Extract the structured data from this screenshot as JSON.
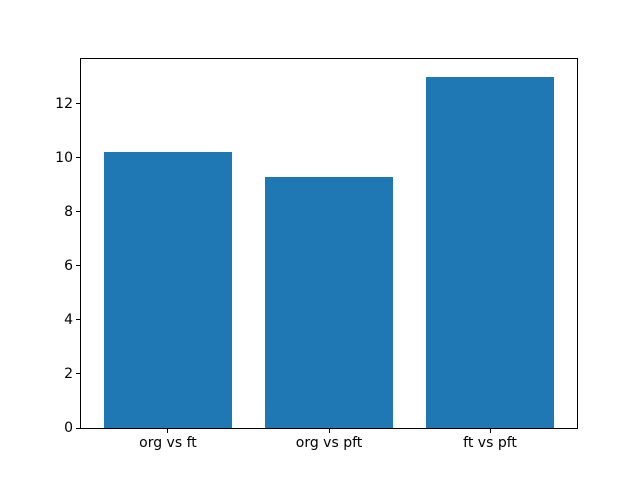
{
  "figure": {
    "background": "#ffffff"
  },
  "axes": {
    "spine_color": "#000000",
    "tick_color": "#000000",
    "text_color": "#000000"
  },
  "chart_data": {
    "type": "bar",
    "categories": [
      "org vs ft",
      "org vs pft",
      "ft vs pft"
    ],
    "values": [
      10.2,
      9.3,
      13.0
    ],
    "title": "",
    "xlabel": "",
    "ylabel": "",
    "ylim": [
      0,
      13.65
    ],
    "xlim": [
      -0.54,
      2.54
    ],
    "bar_width": 0.8,
    "bar_color": "#1f77b4",
    "yticks": [
      0,
      2,
      4,
      6,
      8,
      10,
      12
    ],
    "ytick_labels": [
      "0",
      "2",
      "4",
      "6",
      "8",
      "10",
      "12"
    ],
    "grid": false,
    "legend": null
  }
}
